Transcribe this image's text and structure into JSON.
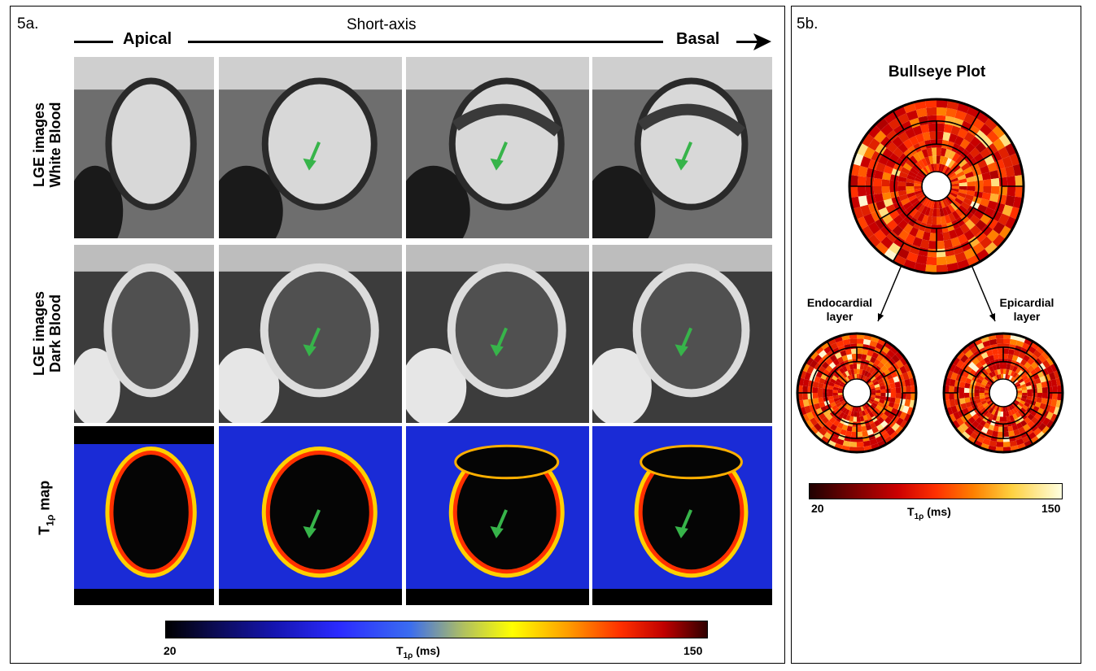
{
  "panel_a": {
    "label": "5a.",
    "apical": "Apical",
    "short_axis": "Short-axis",
    "basal": "Basal",
    "rows": [
      {
        "line1": "LGE images",
        "line2": "White Blood"
      },
      {
        "line1": "LGE images",
        "line2": "Dark Blood"
      },
      {
        "line1": "T",
        "sub": "1ρ",
        "line2": " map"
      }
    ],
    "colorbar": {
      "min": "20",
      "max": "150",
      "label_main": "T",
      "label_sub": "1ρ",
      "label_unit": " (ms)"
    },
    "colors": {
      "arrow": "#37b44a",
      "map_bg": "#1a2bd6"
    }
  },
  "panel_b": {
    "label": "5b.",
    "title": "Bullseye Plot",
    "endo_line1": "Endocardial",
    "endo_line2": "layer",
    "epi_line1": "Epicardial",
    "epi_line2": "layer",
    "colorbar": {
      "min": "20",
      "max": "150",
      "label_main": "T",
      "label_sub": "1ρ",
      "label_unit": " (ms)"
    }
  }
}
